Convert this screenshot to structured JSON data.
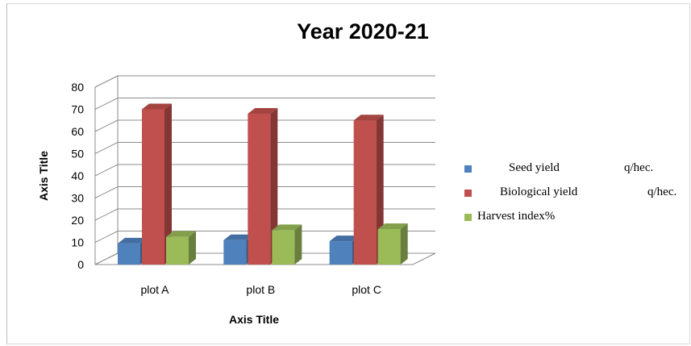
{
  "chart_data": {
    "type": "bar",
    "title": "Year 2020-21",
    "xlabel": "Axis Title",
    "ylabel": "Axis Title",
    "categories": [
      "plot A",
      "plot B",
      "plot C"
    ],
    "ylim": [
      0,
      80
    ],
    "yticks": [
      "0",
      "10",
      "20",
      "30",
      "40",
      "50",
      "60",
      "70",
      "80"
    ],
    "grid": true,
    "legend_position": "right",
    "series": [
      {
        "name": "Seed yield",
        "unit": "q/hec.",
        "color": "#4f81bd",
        "values": [
          9.5,
          11,
          10.5
        ]
      },
      {
        "name": "Biological yield",
        "unit": "q/hec.",
        "color": "#c0504d",
        "values": [
          70,
          68,
          65
        ]
      },
      {
        "name": "Harvest index%",
        "unit": "",
        "color": "#9bbb59",
        "values": [
          12.5,
          15.5,
          16
        ]
      }
    ]
  }
}
